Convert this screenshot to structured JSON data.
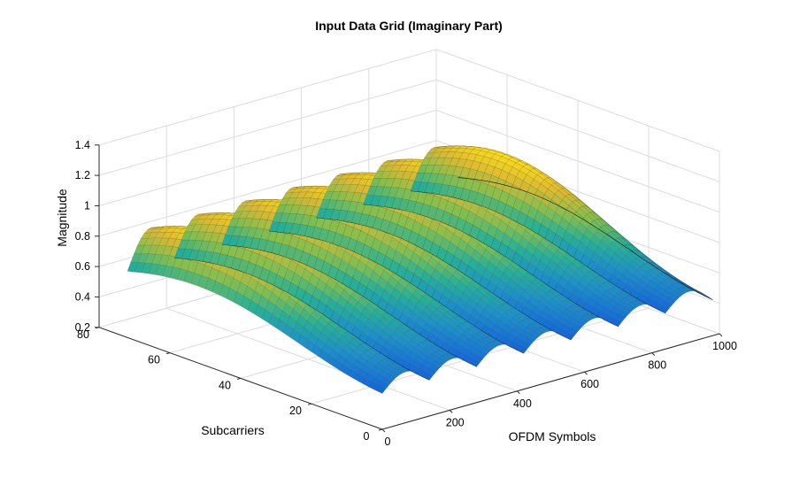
{
  "chart_data": {
    "type": "surface",
    "title": "Input Data Grid (Imaginary Part)",
    "xlabel": "OFDM Symbols",
    "ylabel": "Subcarriers",
    "zlabel": "Magnitude",
    "xlim": [
      0,
      1000
    ],
    "ylim": [
      0,
      80
    ],
    "zlim": [
      0.2,
      1.4
    ],
    "x_ticks": [
      "0",
      "200",
      "400",
      "600",
      "800",
      "1000"
    ],
    "y_ticks": [
      "0",
      "20",
      "40",
      "60",
      "80"
    ],
    "z_ticks": [
      "0.2",
      "0.4",
      "0.6",
      "0.8",
      "1",
      "1.2",
      "1.4"
    ],
    "grid": true,
    "colormap": "parula",
    "surface_model": {
      "x_range": [
        0,
        980
      ],
      "y_range": [
        0,
        72
      ],
      "description": "Along subcarriers, a single hump of magnitude ~1.0; along OFDM symbols, seven abrupt sawtooth ridges repeating every ~140 symbols.",
      "ridge_count": 7,
      "ridge_period": 140,
      "peak": 1.0,
      "trough": 0.3
    }
  }
}
